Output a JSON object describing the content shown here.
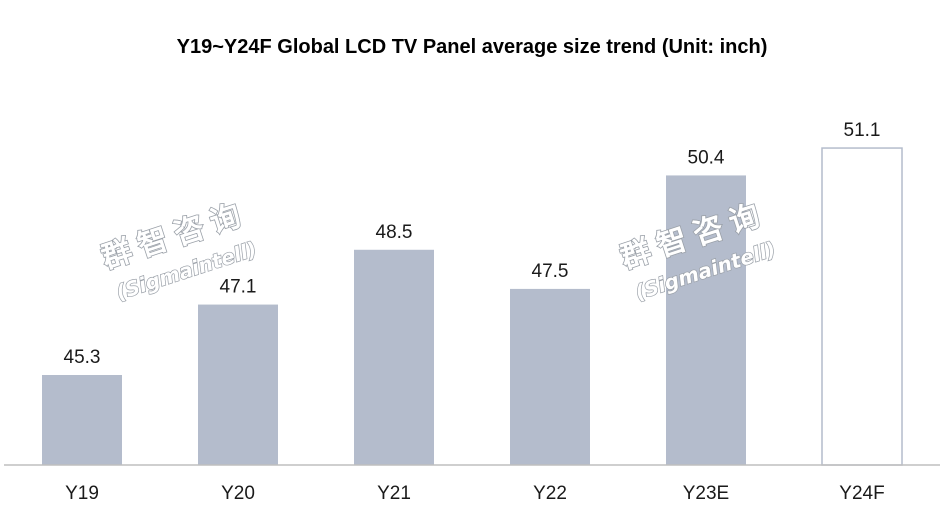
{
  "chart_data": {
    "type": "bar",
    "title": "Y19~Y24F Global LCD TV Panel average size trend (Unit: inch)",
    "categories": [
      "Y19",
      "Y20",
      "Y21",
      "Y22",
      "Y23E",
      "Y24F"
    ],
    "values": [
      45.3,
      47.1,
      48.5,
      47.5,
      50.4,
      51.1
    ],
    "value_labels": [
      "45.3",
      "47.1",
      "48.5",
      "47.5",
      "50.4",
      "51.1"
    ],
    "forecast": [
      false,
      false,
      false,
      false,
      false,
      true
    ],
    "ylim": [
      43.0,
      52.2
    ],
    "grid": false,
    "legend": "none",
    "colors": {
      "bar": "#b4bccc",
      "forecast_fill": "#ffffff",
      "forecast_stroke": "#b4bccc",
      "axis": "#bfbfbf"
    }
  },
  "watermark": {
    "chinese": "群智咨询",
    "english": "(Sigmaintell)"
  }
}
